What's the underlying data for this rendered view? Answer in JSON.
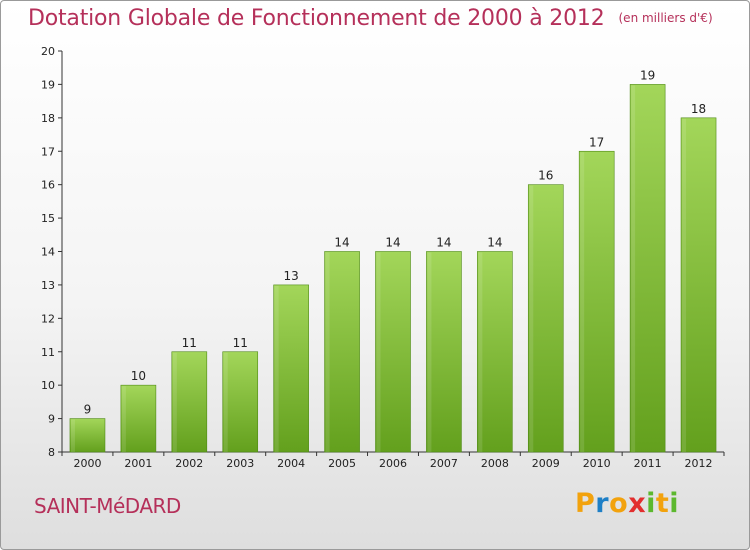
{
  "chart_data": {
    "type": "bar",
    "title": "Dotation Globale de Fonctionnement de 2000 à 2012",
    "unit_note": "(en milliers d'€)",
    "categories": [
      "2000",
      "2001",
      "2002",
      "2003",
      "2004",
      "2005",
      "2006",
      "2007",
      "2008",
      "2009",
      "2010",
      "2011",
      "2012"
    ],
    "values": [
      9,
      10,
      11,
      11,
      13,
      14,
      14,
      14,
      14,
      16,
      17,
      19,
      18
    ],
    "ylim": [
      8,
      20
    ],
    "yticks": [
      8,
      9,
      10,
      11,
      12,
      13,
      14,
      15,
      16,
      17,
      18,
      19,
      20
    ],
    "grid": false,
    "bar_color_top": "#a3d65a",
    "bar_color_bottom": "#63a01d",
    "value_labels": true
  },
  "commune": "SAINT-MéDARD",
  "logo": {
    "letters": [
      "P",
      "r",
      "o",
      "x",
      "i",
      "t",
      "i"
    ],
    "colors": [
      "#f2a20d",
      "#1e7fc6",
      "#e22e2e",
      "#5cb82e"
    ]
  },
  "colors": {
    "title": "#b5305a",
    "axis": "#333333",
    "text": "#222222"
  }
}
